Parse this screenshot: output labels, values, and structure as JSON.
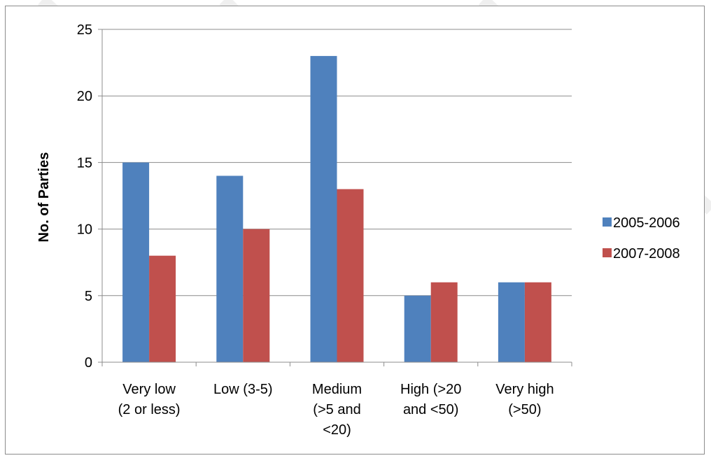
{
  "chart_data": {
    "type": "bar",
    "title": "",
    "xlabel": "",
    "ylabel": "No. of Parties",
    "categories": [
      [
        "Very low",
        "(2 or less)"
      ],
      [
        "Low (3-5)"
      ],
      [
        "Medium",
        "(>5 and",
        "<20)"
      ],
      [
        "High (>20",
        "and <50)"
      ],
      [
        "Very high",
        "(>50)"
      ]
    ],
    "series": [
      {
        "name": "2005-2006",
        "values": [
          15,
          14,
          23,
          5,
          6
        ],
        "color": "#4f81bd"
      },
      {
        "name": "2007-2008",
        "values": [
          8,
          10,
          13,
          6,
          6
        ],
        "color": "#c0504d"
      }
    ],
    "ylim": [
      0,
      25
    ],
    "yticks": [
      0,
      5,
      10,
      15,
      20,
      25
    ],
    "grid": true,
    "legend": "right"
  }
}
